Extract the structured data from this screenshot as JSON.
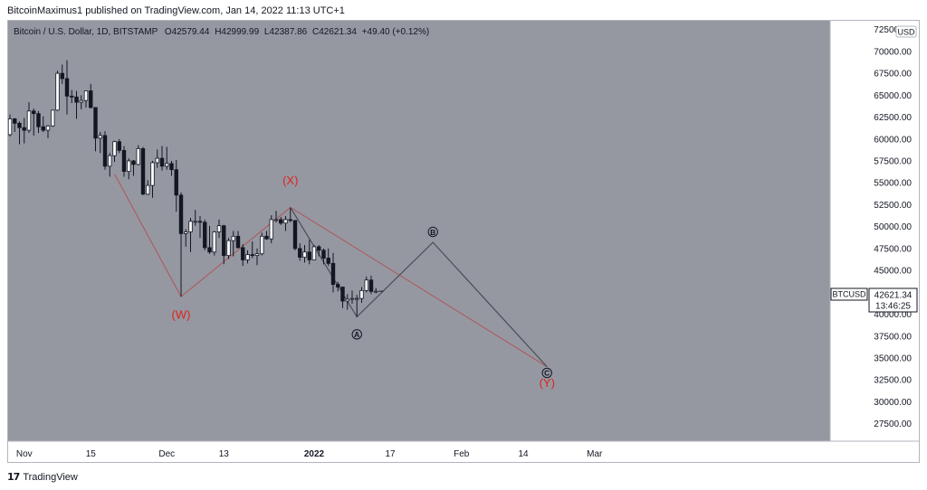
{
  "caption": "BitcoinMaximus1 published on TradingView.com, Jan 14, 2022 11:13 UTC+1",
  "legend": {
    "symbol": "Bitcoin / U.S. Dollar, 1D, BITSTAMP",
    "open_label": "O",
    "open": "42579.44",
    "high_label": "H",
    "high": "42999.99",
    "low_label": "L",
    "low": "42387.86",
    "close_label": "C",
    "close": "42621.34",
    "change": "+49.40 (+0.12%)"
  },
  "currency": "USD",
  "price_tag": {
    "symbol": "BTCUSD",
    "price": "42621.34",
    "countdown": "13:46:25"
  },
  "footer": {
    "brand": "TradingView",
    "logo_text": "17"
  },
  "colors": {
    "pane_bg": "#9598a1",
    "up_body": "#ffffff",
    "down_body": "#131722",
    "wick": "#131722",
    "wave_red": "#e0211d",
    "wave_line_gray": "#4a4d57",
    "wave_line_red": "#b0545a"
  },
  "chart_data": {
    "type": "candlestick",
    "x_ticks": [
      "Nov",
      "15",
      "Dec",
      "13",
      "2022",
      "17",
      "Feb",
      "14",
      "Mar"
    ],
    "y_ticks": [
      "72500.00",
      "70000.00",
      "67500.00",
      "65000.00",
      "62500.00",
      "60000.00",
      "57500.00",
      "55000.00",
      "52500.00",
      "50000.00",
      "47500.00",
      "45000.00",
      "42500.00",
      "40000.00",
      "37500.00",
      "35000.00",
      "32500.00",
      "30000.00",
      "27500.00"
    ],
    "ylim": [
      25500,
      73500
    ],
    "candles": [
      {
        "date": "2021-10-29",
        "o": 60500,
        "h": 62800,
        "l": 60300,
        "c": 62300
      },
      {
        "date": "2021-10-30",
        "o": 62300,
        "h": 62400,
        "l": 60800,
        "c": 61800
      },
      {
        "date": "2021-10-31",
        "o": 61800,
        "h": 62000,
        "l": 59400,
        "c": 61300
      },
      {
        "date": "2021-11-01",
        "o": 61300,
        "h": 62400,
        "l": 59500,
        "c": 61000
      },
      {
        "date": "2021-11-02",
        "o": 61000,
        "h": 64200,
        "l": 60700,
        "c": 63200
      },
      {
        "date": "2021-11-03",
        "o": 63200,
        "h": 63500,
        "l": 60400,
        "c": 62900
      },
      {
        "date": "2021-11-04",
        "o": 62900,
        "h": 63200,
        "l": 60700,
        "c": 61400
      },
      {
        "date": "2021-11-05",
        "o": 61400,
        "h": 62600,
        "l": 60800,
        "c": 61000
      },
      {
        "date": "2021-11-06",
        "o": 61000,
        "h": 61600,
        "l": 60100,
        "c": 61500
      },
      {
        "date": "2021-11-07",
        "o": 61500,
        "h": 63300,
        "l": 61400,
        "c": 63300
      },
      {
        "date": "2021-11-08",
        "o": 63300,
        "h": 67800,
        "l": 63200,
        "c": 67500
      },
      {
        "date": "2021-11-09",
        "o": 67500,
        "h": 68500,
        "l": 66300,
        "c": 66900
      },
      {
        "date": "2021-11-10",
        "o": 66900,
        "h": 69000,
        "l": 62800,
        "c": 64900
      },
      {
        "date": "2021-11-11",
        "o": 64900,
        "h": 65600,
        "l": 64100,
        "c": 64800
      },
      {
        "date": "2021-11-12",
        "o": 64800,
        "h": 65500,
        "l": 62300,
        "c": 64200
      },
      {
        "date": "2021-11-13",
        "o": 64200,
        "h": 65000,
        "l": 63400,
        "c": 64400
      },
      {
        "date": "2021-11-14",
        "o": 64400,
        "h": 65500,
        "l": 63600,
        "c": 65500
      },
      {
        "date": "2021-11-15",
        "o": 65500,
        "h": 66300,
        "l": 63500,
        "c": 63600
      },
      {
        "date": "2021-11-16",
        "o": 63600,
        "h": 63600,
        "l": 58600,
        "c": 60100
      },
      {
        "date": "2021-11-17",
        "o": 60100,
        "h": 60800,
        "l": 58400,
        "c": 60400
      },
      {
        "date": "2021-11-18",
        "o": 60400,
        "h": 60900,
        "l": 56500,
        "c": 56900
      },
      {
        "date": "2021-11-19",
        "o": 56900,
        "h": 58400,
        "l": 55700,
        "c": 58100
      },
      {
        "date": "2021-11-20",
        "o": 58100,
        "h": 59800,
        "l": 57400,
        "c": 59700
      },
      {
        "date": "2021-11-21",
        "o": 59700,
        "h": 60000,
        "l": 58400,
        "c": 58700
      },
      {
        "date": "2021-11-22",
        "o": 58700,
        "h": 59200,
        "l": 55700,
        "c": 56300
      },
      {
        "date": "2021-11-23",
        "o": 56300,
        "h": 57800,
        "l": 55400,
        "c": 57500
      },
      {
        "date": "2021-11-24",
        "o": 57500,
        "h": 57600,
        "l": 55800,
        "c": 57100
      },
      {
        "date": "2021-11-25",
        "o": 57100,
        "h": 59300,
        "l": 57000,
        "c": 58900
      },
      {
        "date": "2021-11-26",
        "o": 58900,
        "h": 59100,
        "l": 53600,
        "c": 53700
      },
      {
        "date": "2021-11-27",
        "o": 53700,
        "h": 55300,
        "l": 53600,
        "c": 54700
      },
      {
        "date": "2021-11-28",
        "o": 54700,
        "h": 57500,
        "l": 53300,
        "c": 57300
      },
      {
        "date": "2021-11-29",
        "o": 57300,
        "h": 58800,
        "l": 56700,
        "c": 57800
      },
      {
        "date": "2021-11-30",
        "o": 57800,
        "h": 59200,
        "l": 56400,
        "c": 56900
      },
      {
        "date": "2021-12-01",
        "o": 56900,
        "h": 59100,
        "l": 56500,
        "c": 57200
      },
      {
        "date": "2021-12-02",
        "o": 57200,
        "h": 57500,
        "l": 55800,
        "c": 56500
      },
      {
        "date": "2021-12-03",
        "o": 56500,
        "h": 57600,
        "l": 51700,
        "c": 53600
      },
      {
        "date": "2021-12-04",
        "o": 53600,
        "h": 53900,
        "l": 42000,
        "c": 49200
      },
      {
        "date": "2021-12-05",
        "o": 49200,
        "h": 49700,
        "l": 47700,
        "c": 49400
      },
      {
        "date": "2021-12-06",
        "o": 49400,
        "h": 51000,
        "l": 47100,
        "c": 50600
      },
      {
        "date": "2021-12-07",
        "o": 50600,
        "h": 51900,
        "l": 50100,
        "c": 50600
      },
      {
        "date": "2021-12-08",
        "o": 50600,
        "h": 51200,
        "l": 48700,
        "c": 50500
      },
      {
        "date": "2021-12-09",
        "o": 50500,
        "h": 50800,
        "l": 47300,
        "c": 47600
      },
      {
        "date": "2021-12-10",
        "o": 47600,
        "h": 50100,
        "l": 46900,
        "c": 47100
      },
      {
        "date": "2021-12-11",
        "o": 47100,
        "h": 49500,
        "l": 46700,
        "c": 49400
      },
      {
        "date": "2021-12-12",
        "o": 49400,
        "h": 50800,
        "l": 48700,
        "c": 50100
      },
      {
        "date": "2021-12-13",
        "o": 50100,
        "h": 50200,
        "l": 45700,
        "c": 46700
      },
      {
        "date": "2021-12-14",
        "o": 46700,
        "h": 48700,
        "l": 46300,
        "c": 48400
      },
      {
        "date": "2021-12-15",
        "o": 48400,
        "h": 49500,
        "l": 46600,
        "c": 48900
      },
      {
        "date": "2021-12-16",
        "o": 48900,
        "h": 49500,
        "l": 47500,
        "c": 47600
      },
      {
        "date": "2021-12-17",
        "o": 47600,
        "h": 48000,
        "l": 45500,
        "c": 46200
      },
      {
        "date": "2021-12-18",
        "o": 46200,
        "h": 47300,
        "l": 45800,
        "c": 46800
      },
      {
        "date": "2021-12-19",
        "o": 46800,
        "h": 48300,
        "l": 46400,
        "c": 46700
      },
      {
        "date": "2021-12-20",
        "o": 46700,
        "h": 47500,
        "l": 45600,
        "c": 46900
      },
      {
        "date": "2021-12-21",
        "o": 46900,
        "h": 49300,
        "l": 46700,
        "c": 48900
      },
      {
        "date": "2021-12-22",
        "o": 48900,
        "h": 49500,
        "l": 48500,
        "c": 48600
      },
      {
        "date": "2021-12-23",
        "o": 48600,
        "h": 51300,
        "l": 48100,
        "c": 50800
      },
      {
        "date": "2021-12-24",
        "o": 50800,
        "h": 51800,
        "l": 50500,
        "c": 50800
      },
      {
        "date": "2021-12-25",
        "o": 50800,
        "h": 51100,
        "l": 50200,
        "c": 50400
      },
      {
        "date": "2021-12-26",
        "o": 50400,
        "h": 51200,
        "l": 49500,
        "c": 50800
      },
      {
        "date": "2021-12-27",
        "o": 50800,
        "h": 52100,
        "l": 50500,
        "c": 50700
      },
      {
        "date": "2021-12-28",
        "o": 50700,
        "h": 50700,
        "l": 47300,
        "c": 47500
      },
      {
        "date": "2021-12-29",
        "o": 47500,
        "h": 48100,
        "l": 46100,
        "c": 46500
      },
      {
        "date": "2021-12-30",
        "o": 46500,
        "h": 47900,
        "l": 45900,
        "c": 47100
      },
      {
        "date": "2021-12-31",
        "o": 47100,
        "h": 48500,
        "l": 45700,
        "c": 46200
      },
      {
        "date": "2022-01-01",
        "o": 46200,
        "h": 47900,
        "l": 46200,
        "c": 47700
      },
      {
        "date": "2022-01-02",
        "o": 47700,
        "h": 47900,
        "l": 46600,
        "c": 47300
      },
      {
        "date": "2022-01-03",
        "o": 47300,
        "h": 47500,
        "l": 45700,
        "c": 46400
      },
      {
        "date": "2022-01-04",
        "o": 46400,
        "h": 47500,
        "l": 45500,
        "c": 45800
      },
      {
        "date": "2022-01-05",
        "o": 45800,
        "h": 47000,
        "l": 42500,
        "c": 43400
      },
      {
        "date": "2022-01-06",
        "o": 43400,
        "h": 43700,
        "l": 42600,
        "c": 43100
      },
      {
        "date": "2022-01-07",
        "o": 43100,
        "h": 43100,
        "l": 40700,
        "c": 41500
      },
      {
        "date": "2022-01-08",
        "o": 41500,
        "h": 42300,
        "l": 40500,
        "c": 41700
      },
      {
        "date": "2022-01-09",
        "o": 41700,
        "h": 42700,
        "l": 41200,
        "c": 41800
      },
      {
        "date": "2022-01-10",
        "o": 41800,
        "h": 42200,
        "l": 39700,
        "c": 41800
      },
      {
        "date": "2022-01-11",
        "o": 41800,
        "h": 43100,
        "l": 41300,
        "c": 42700
      },
      {
        "date": "2022-01-12",
        "o": 42700,
        "h": 44300,
        "l": 42500,
        "c": 43900
      },
      {
        "date": "2022-01-13",
        "o": 43900,
        "h": 44400,
        "l": 42300,
        "c": 42600
      },
      {
        "date": "2022-01-14",
        "o": 42579.44,
        "h": 42999.99,
        "l": 42387.86,
        "c": 42621.34
      }
    ],
    "wave_labels": [
      {
        "text": "(W)",
        "date": "2021-12-04",
        "price": 39500,
        "color": "red"
      },
      {
        "text": "(X)",
        "date": "2021-12-27",
        "price": 54800,
        "color": "red"
      },
      {
        "text": "A",
        "date": "2022-01-10",
        "price": 37700,
        "circled": true
      },
      {
        "text": "B",
        "date": "2022-01-26",
        "price": 49400,
        "circled": true
      },
      {
        "text": "C",
        "date": "2022-02-19",
        "price": 33300,
        "circled": true
      },
      {
        "text": "(Y)",
        "date": "2022-02-19",
        "price": 31700,
        "color": "red"
      }
    ],
    "wave_path_gray": [
      {
        "date": "2021-12-27",
        "price": 52200
      },
      {
        "date": "2022-01-10",
        "price": 39700
      },
      {
        "date": "2022-01-26",
        "price": 48200
      },
      {
        "date": "2022-02-19",
        "price": 34000
      }
    ],
    "wave_path_red": [
      {
        "date": "2021-11-20",
        "price": 56000
      },
      {
        "date": "2021-12-04",
        "price": 42000
      },
      {
        "date": "2021-12-27",
        "price": 52200
      },
      {
        "date": "2022-02-19",
        "price": 34000
      }
    ]
  }
}
